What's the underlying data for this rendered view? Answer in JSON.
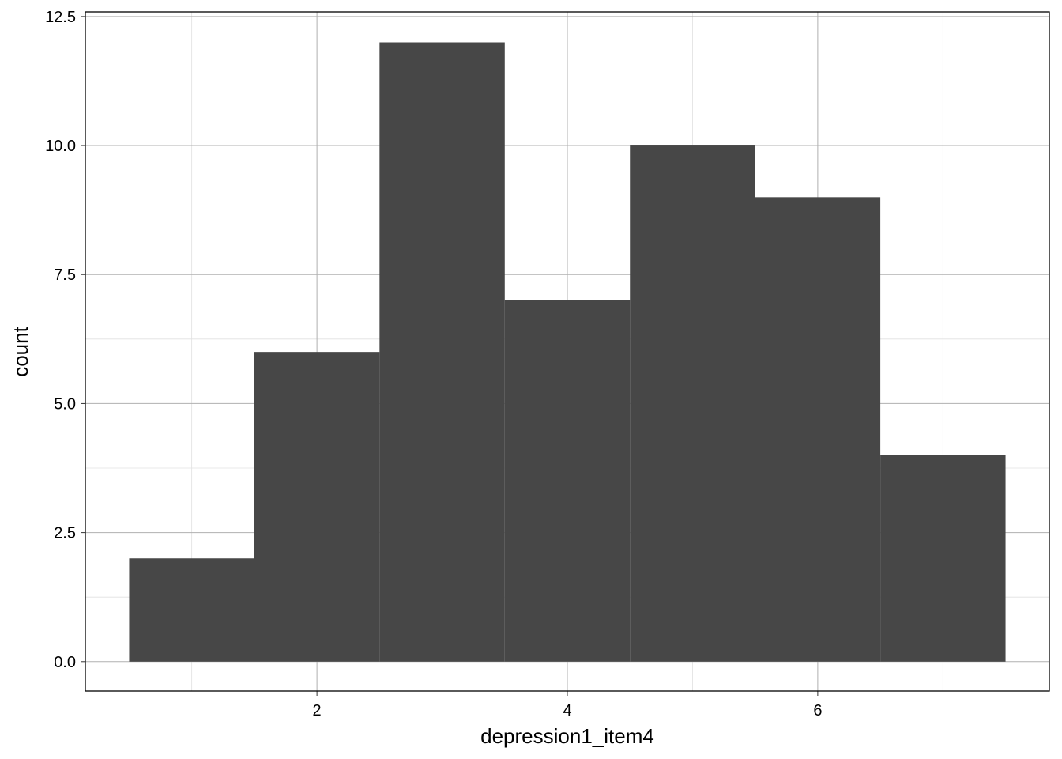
{
  "chart_data": {
    "type": "histogram",
    "x_label": "depression1_item4",
    "y_label": "count",
    "bins": [
      0.5,
      1.5,
      2.5,
      3.5,
      4.5,
      5.5,
      6.5,
      7.5
    ],
    "values": [
      2,
      6,
      12,
      7,
      10,
      9,
      4
    ],
    "color": "#474747",
    "xlim": [
      0.15,
      7.85
    ],
    "ylim": [
      -0.57,
      12.59
    ],
    "xticks": [
      2,
      4,
      6
    ],
    "yticks": [
      {
        "value": 0,
        "label": "0.0"
      },
      {
        "value": 2.5,
        "label": "2.5"
      },
      {
        "value": 5,
        "label": "5.0"
      },
      {
        "value": 7.5,
        "label": "7.5"
      },
      {
        "value": 10,
        "label": "10.0"
      },
      {
        "value": 12.5,
        "label": "12.5"
      }
    ],
    "xminor": [
      1,
      3,
      5,
      7
    ],
    "yminor": [
      1.25,
      3.75,
      6.25,
      8.75,
      11.25
    ],
    "grid": true
  }
}
